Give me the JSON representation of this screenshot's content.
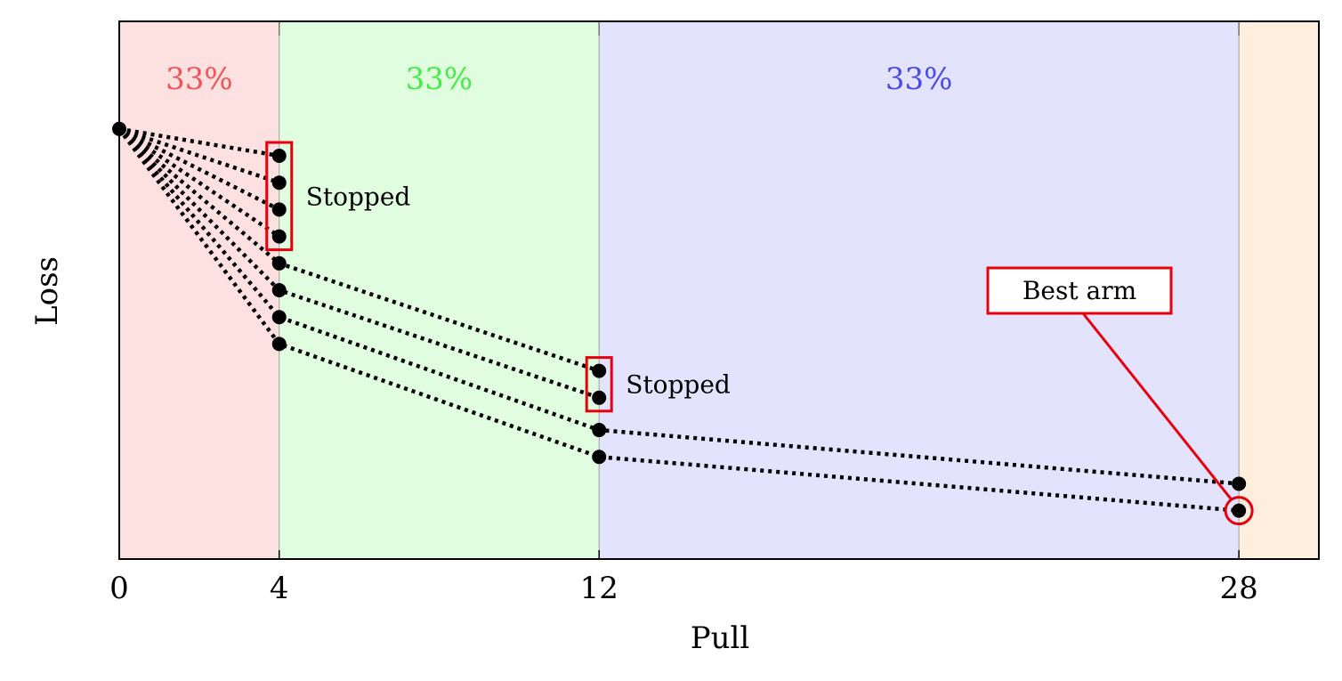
{
  "chart_data": {
    "type": "line",
    "xlabel": "Pull",
    "ylabel": "Loss",
    "x_ticks": [
      0,
      4,
      12,
      28
    ],
    "xlim": [
      0,
      30
    ],
    "ylim": [
      0,
      10
    ],
    "grid": false,
    "regions": [
      {
        "x_start": 0,
        "x_end": 4,
        "label": "33%",
        "color": "#fde1e1",
        "label_color": "#f0545a"
      },
      {
        "x_start": 4,
        "x_end": 12,
        "label": "33%",
        "color": "#e0fde0",
        "label_color": "#44ee44"
      },
      {
        "x_start": 12,
        "x_end": 28,
        "label": "33%",
        "color": "#e3e3fd",
        "label_color": "#4a4ae8"
      },
      {
        "x_start": 28,
        "x_end": 30,
        "label": "",
        "color": "#fdeedd",
        "label_color": "#000000"
      }
    ],
    "start_point": {
      "x": 0,
      "y": 8.0
    },
    "series": [
      {
        "points": [
          [
            0,
            8.0
          ],
          [
            4,
            7.5
          ]
        ]
      },
      {
        "points": [
          [
            0,
            8.0
          ],
          [
            4,
            7.0
          ]
        ]
      },
      {
        "points": [
          [
            0,
            8.0
          ],
          [
            4,
            6.5
          ]
        ]
      },
      {
        "points": [
          [
            0,
            8.0
          ],
          [
            4,
            6.0
          ]
        ]
      },
      {
        "points": [
          [
            0,
            8.0
          ],
          [
            4,
            5.5
          ],
          [
            12,
            3.5
          ]
        ]
      },
      {
        "points": [
          [
            0,
            8.0
          ],
          [
            4,
            5.0
          ],
          [
            12,
            3.0
          ]
        ]
      },
      {
        "points": [
          [
            0,
            8.0
          ],
          [
            4,
            4.5
          ],
          [
            12,
            2.4
          ],
          [
            28,
            1.4
          ]
        ]
      },
      {
        "points": [
          [
            0,
            8.0
          ],
          [
            4,
            4.0
          ],
          [
            12,
            1.9
          ],
          [
            28,
            0.9
          ]
        ]
      }
    ],
    "stopped_groups": [
      {
        "x": 4,
        "y_min": 6.0,
        "y_max": 7.5,
        "label": "Stopped"
      },
      {
        "x": 12,
        "y_min": 3.0,
        "y_max": 3.5,
        "label": "Stopped"
      }
    ],
    "best_arm": {
      "x": 28,
      "y": 0.9,
      "label": "Best arm"
    },
    "annotation_color": "#e8000b"
  }
}
